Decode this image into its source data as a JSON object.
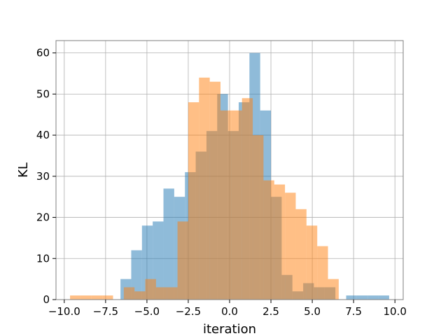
{
  "chart_data": {
    "type": "bar",
    "subtype": "overlapping-histogram",
    "title": "",
    "xlabel": "iteration",
    "ylabel": "KL",
    "xlim": [
      -10.5,
      10.5
    ],
    "ylim": [
      0,
      63
    ],
    "x_ticks": [
      -10.0,
      -7.5,
      -5.0,
      -2.5,
      0.0,
      2.5,
      5.0,
      7.5,
      10.0
    ],
    "x_tick_labels": [
      "−10.0",
      "−7.5",
      "−5.0",
      "−2.5",
      "0.0",
      "2.5",
      "5.0",
      "7.5",
      "10.0"
    ],
    "y_ticks": [
      0,
      10,
      20,
      30,
      40,
      50,
      60
    ],
    "y_tick_labels": [
      "0",
      "10",
      "20",
      "30",
      "40",
      "50",
      "60"
    ],
    "grid": true,
    "legend": "none",
    "series": [
      {
        "color": "#1f77b4",
        "alpha": 0.5,
        "bins": [
          {
            "x0": -6.6,
            "x1": -5.95,
            "count": 5
          },
          {
            "x0": -5.95,
            "x1": -5.3,
            "count": 12
          },
          {
            "x0": -5.3,
            "x1": -4.65,
            "count": 18
          },
          {
            "x0": -4.65,
            "x1": -4.0,
            "count": 19
          },
          {
            "x0": -4.0,
            "x1": -3.35,
            "count": 27
          },
          {
            "x0": -3.35,
            "x1": -2.7,
            "count": 25
          },
          {
            "x0": -2.7,
            "x1": -2.05,
            "count": 31
          },
          {
            "x0": -2.05,
            "x1": -1.4,
            "count": 36
          },
          {
            "x0": -1.4,
            "x1": -0.75,
            "count": 41
          },
          {
            "x0": -0.75,
            "x1": -0.1,
            "count": 50
          },
          {
            "x0": -0.1,
            "x1": 0.55,
            "count": 41
          },
          {
            "x0": 0.55,
            "x1": 1.2,
            "count": 48
          },
          {
            "x0": 1.2,
            "x1": 1.85,
            "count": 60
          },
          {
            "x0": 1.85,
            "x1": 2.5,
            "count": 46
          },
          {
            "x0": 2.5,
            "x1": 3.15,
            "count": 25
          },
          {
            "x0": 3.15,
            "x1": 3.8,
            "count": 6
          },
          {
            "x0": 3.8,
            "x1": 4.45,
            "count": 2
          },
          {
            "x0": 4.45,
            "x1": 5.1,
            "count": 4
          },
          {
            "x0": 5.1,
            "x1": 5.75,
            "count": 3
          },
          {
            "x0": 5.75,
            "x1": 6.4,
            "count": 3
          },
          {
            "x0": 6.4,
            "x1": 7.05,
            "count": 0
          },
          {
            "x0": 7.05,
            "x1": 7.7,
            "count": 1
          },
          {
            "x0": 7.7,
            "x1": 8.35,
            "count": 1
          },
          {
            "x0": 8.35,
            "x1": 9.0,
            "count": 1
          },
          {
            "x0": 9.0,
            "x1": 9.65,
            "count": 1
          }
        ]
      },
      {
        "color": "#ff7f0e",
        "alpha": 0.5,
        "bins": [
          {
            "x0": -9.65,
            "x1": -9.0,
            "count": 1
          },
          {
            "x0": -9.0,
            "x1": -8.35,
            "count": 1
          },
          {
            "x0": -8.35,
            "x1": -7.7,
            "count": 1
          },
          {
            "x0": -7.7,
            "x1": -7.05,
            "count": 1
          },
          {
            "x0": -7.05,
            "x1": -6.4,
            "count": 0
          },
          {
            "x0": -6.4,
            "x1": -5.75,
            "count": 3
          },
          {
            "x0": -5.75,
            "x1": -5.1,
            "count": 2
          },
          {
            "x0": -5.1,
            "x1": -4.45,
            "count": 5
          },
          {
            "x0": -4.45,
            "x1": -3.8,
            "count": 3
          },
          {
            "x0": -3.8,
            "x1": -3.15,
            "count": 3
          },
          {
            "x0": -3.15,
            "x1": -2.5,
            "count": 19
          },
          {
            "x0": -2.5,
            "x1": -1.85,
            "count": 48
          },
          {
            "x0": -1.85,
            "x1": -1.2,
            "count": 54
          },
          {
            "x0": -1.2,
            "x1": -0.55,
            "count": 53
          },
          {
            "x0": -0.55,
            "x1": 0.1,
            "count": 46
          },
          {
            "x0": 0.1,
            "x1": 0.75,
            "count": 46
          },
          {
            "x0": 0.75,
            "x1": 1.4,
            "count": 49
          },
          {
            "x0": 1.4,
            "x1": 2.05,
            "count": 40
          },
          {
            "x0": 2.05,
            "x1": 2.7,
            "count": 29
          },
          {
            "x0": 2.7,
            "x1": 3.35,
            "count": 28
          },
          {
            "x0": 3.35,
            "x1": 4.0,
            "count": 26
          },
          {
            "x0": 4.0,
            "x1": 4.65,
            "count": 22
          },
          {
            "x0": 4.65,
            "x1": 5.3,
            "count": 18
          },
          {
            "x0": 5.3,
            "x1": 5.95,
            "count": 13
          },
          {
            "x0": 5.95,
            "x1": 6.6,
            "count": 5
          }
        ]
      }
    ]
  }
}
